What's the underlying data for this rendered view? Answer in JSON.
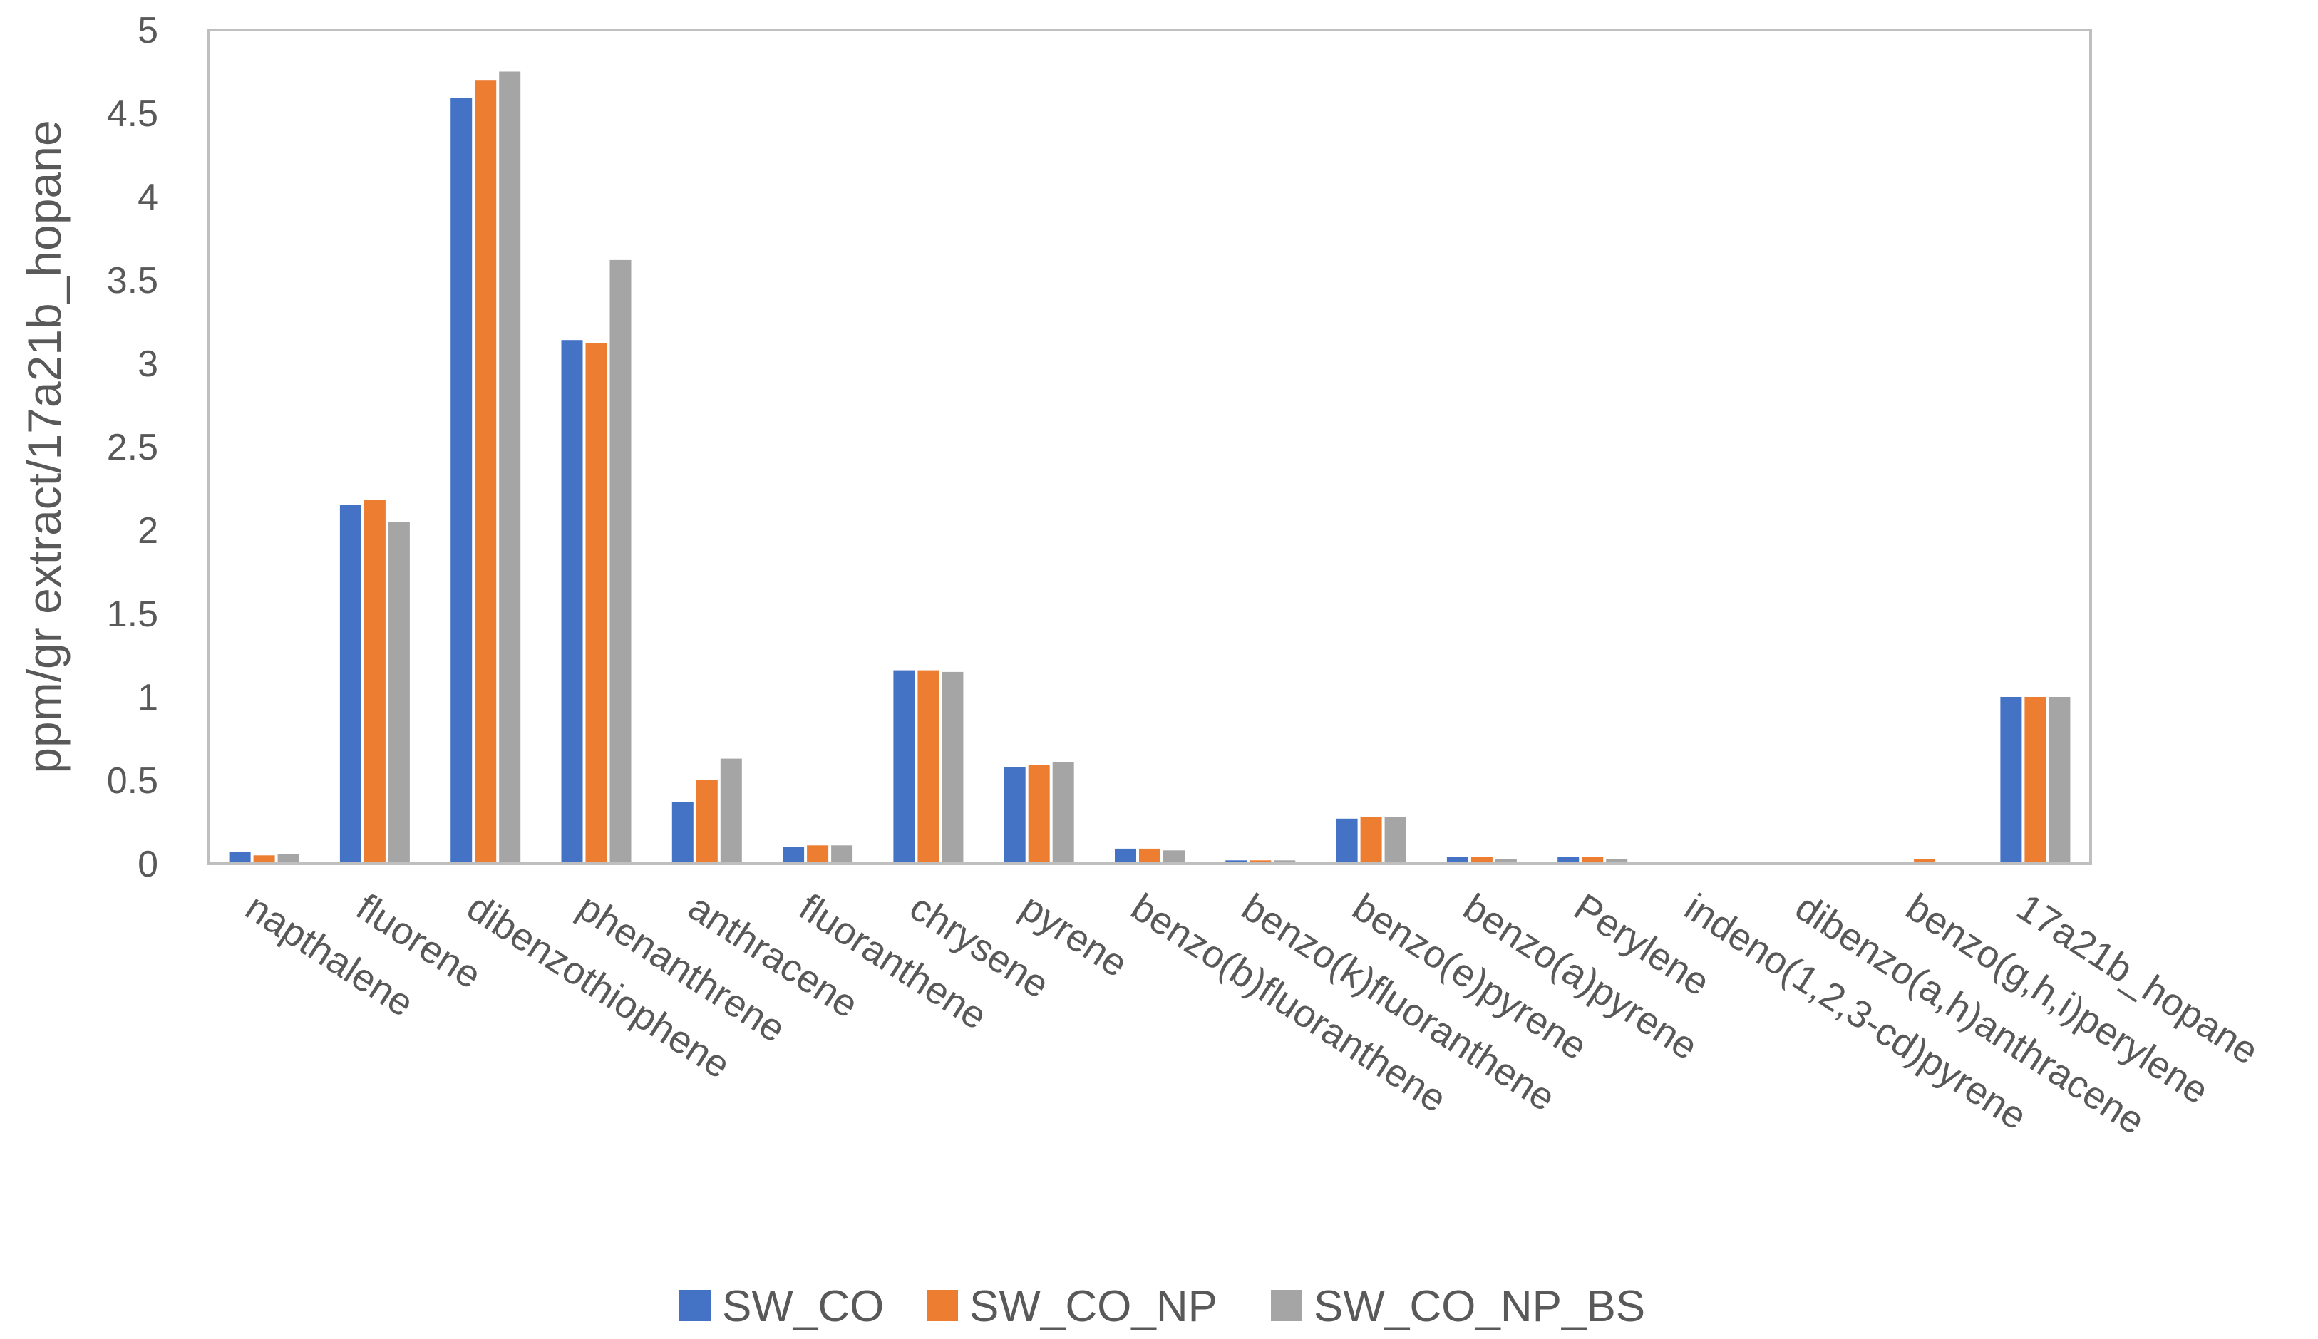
{
  "chart_data": {
    "type": "bar",
    "title": "",
    "xlabel": "",
    "ylabel": "ppm/gr extract/17a21b_hopane",
    "ylim": [
      0,
      5
    ],
    "yticks": [
      0,
      0.5,
      1,
      1.5,
      2,
      2.5,
      3,
      3.5,
      4,
      4.5,
      5
    ],
    "ytick_labels": [
      "0",
      "0.5",
      "1",
      "1.5",
      "2",
      "2.5",
      "3",
      "3.5",
      "4",
      "4.5",
      "5"
    ],
    "grid": false,
    "legend_position": "bottom",
    "categories": [
      "napthalene",
      "fluorene",
      "dibenzothiophene",
      "phenanthrene",
      "anthracene",
      "fluoranthene",
      "chrysene",
      "pyrene",
      "benzo(b)fluoranthene",
      "benzo(k)fluoranthene",
      "benzo(e)pyrene",
      "benzo(a)pyrene",
      "Perylene",
      "indeno(1,2,3-cd)pyrene",
      "dibenzo(a,h)anthracene",
      "benzo(g,h,i)perylene",
      "17a21b_hopane"
    ],
    "series": [
      {
        "name": "SW_CO",
        "color": "#4472C4",
        "values": [
          0.07,
          2.15,
          4.59,
          3.14,
          0.37,
          0.1,
          1.16,
          0.58,
          0.09,
          0.02,
          0.27,
          0.04,
          0.04,
          0.0,
          0.0,
          0.0,
          1.0
        ]
      },
      {
        "name": "SW_CO_NP",
        "color": "#ED7D31",
        "values": [
          0.05,
          2.18,
          4.7,
          3.12,
          0.5,
          0.11,
          1.16,
          0.59,
          0.09,
          0.02,
          0.28,
          0.04,
          0.04,
          0.0,
          0.0,
          0.03,
          1.0
        ]
      },
      {
        "name": "SW_CO_NP_BS",
        "color": "#A5A5A5",
        "values": [
          0.06,
          2.05,
          4.75,
          3.62,
          0.63,
          0.11,
          1.15,
          0.61,
          0.08,
          0.02,
          0.28,
          0.03,
          0.03,
          0.0,
          0.0,
          0.01,
          1.0
        ]
      }
    ]
  }
}
